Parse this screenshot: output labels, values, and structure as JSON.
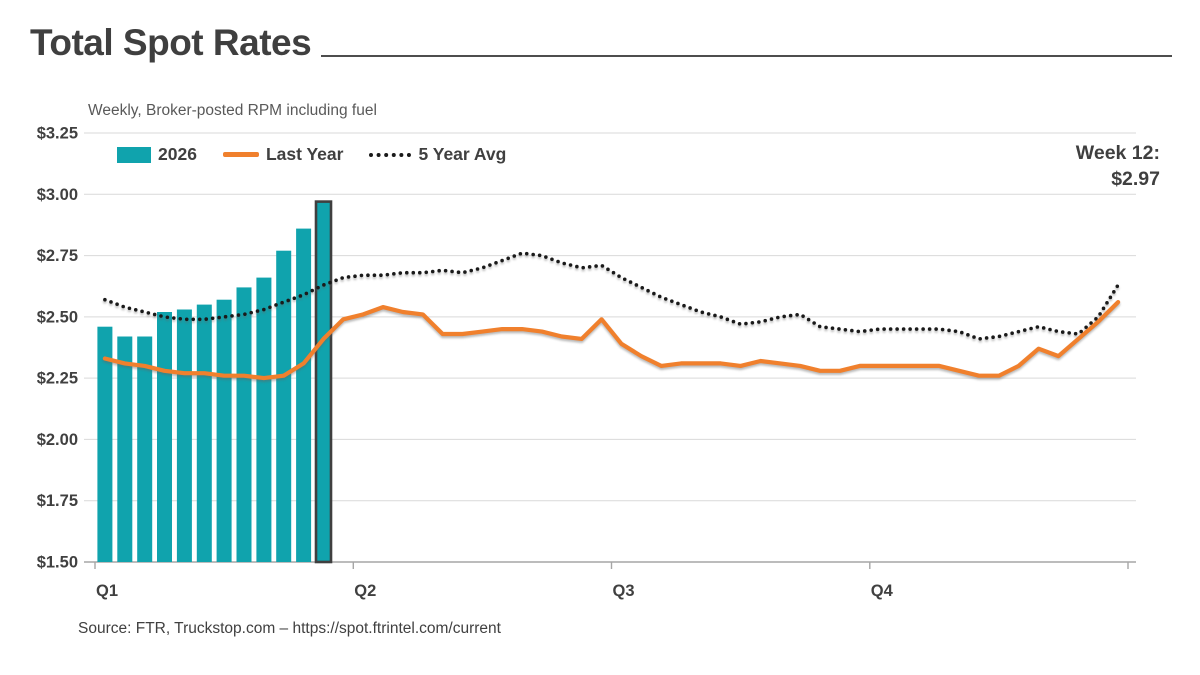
{
  "header": {
    "title": "Total Spot Rates",
    "subtitle": "Weekly, Broker-posted RPM including fuel"
  },
  "source": "Source: FTR, Truckstop.com – https://spot.ftrintel.com/current",
  "chart_data": {
    "type": "bar+line",
    "title": "Total Spot Rates",
    "subtitle": "Weekly, Broker-posted RPM including fuel",
    "x_unit": "week of year",
    "weeks_per_year": 52,
    "xticks": [
      "Q1",
      "Q2",
      "Q3",
      "Q4"
    ],
    "yticks": [
      {
        "v": 1.5,
        "label": "$1.50"
      },
      {
        "v": 1.75,
        "label": "$1.75"
      },
      {
        "v": 2.0,
        "label": "$2.00"
      },
      {
        "v": 2.25,
        "label": "$2.25"
      },
      {
        "v": 2.5,
        "label": "$2.50"
      },
      {
        "v": 2.75,
        "label": "$2.75"
      },
      {
        "v": 3.0,
        "label": "$3.00"
      },
      {
        "v": 3.25,
        "label": "$3.25"
      }
    ],
    "ylim": [
      1.5,
      3.25
    ],
    "grid": true,
    "legend_position": "top-left",
    "callout": {
      "label": "Week 12:",
      "value": "$2.97"
    },
    "series": [
      {
        "name": "2026",
        "type": "bar",
        "color": "#10A3AD",
        "highlight_last_bar": true,
        "values": [
          2.46,
          2.42,
          2.42,
          2.52,
          2.53,
          2.55,
          2.57,
          2.62,
          2.66,
          2.77,
          2.86,
          2.97
        ]
      },
      {
        "name": "Last Year",
        "type": "line",
        "color": "#F0802D",
        "values": [
          2.33,
          2.31,
          2.3,
          2.28,
          2.27,
          2.27,
          2.26,
          2.26,
          2.25,
          2.26,
          2.31,
          2.41,
          2.49,
          2.51,
          2.54,
          2.52,
          2.51,
          2.43,
          2.43,
          2.44,
          2.45,
          2.45,
          2.44,
          2.42,
          2.41,
          2.49,
          2.39,
          2.34,
          2.3,
          2.31,
          2.31,
          2.31,
          2.3,
          2.32,
          2.31,
          2.3,
          2.28,
          2.28,
          2.3,
          2.3,
          2.3,
          2.3,
          2.3,
          2.28,
          2.26,
          2.26,
          2.3,
          2.37,
          2.34,
          2.41,
          2.48,
          2.56
        ]
      },
      {
        "name": "5 Year Avg",
        "type": "dotted-line",
        "color": "#1A1A1A",
        "values": [
          2.57,
          2.54,
          2.52,
          2.5,
          2.49,
          2.49,
          2.5,
          2.51,
          2.53,
          2.56,
          2.59,
          2.63,
          2.66,
          2.67,
          2.67,
          2.68,
          2.68,
          2.69,
          2.68,
          2.7,
          2.73,
          2.76,
          2.75,
          2.72,
          2.7,
          2.71,
          2.66,
          2.62,
          2.58,
          2.55,
          2.52,
          2.5,
          2.47,
          2.48,
          2.5,
          2.51,
          2.46,
          2.45,
          2.44,
          2.45,
          2.45,
          2.45,
          2.45,
          2.44,
          2.41,
          2.42,
          2.44,
          2.46,
          2.44,
          2.43,
          2.5,
          2.63
        ]
      }
    ]
  }
}
